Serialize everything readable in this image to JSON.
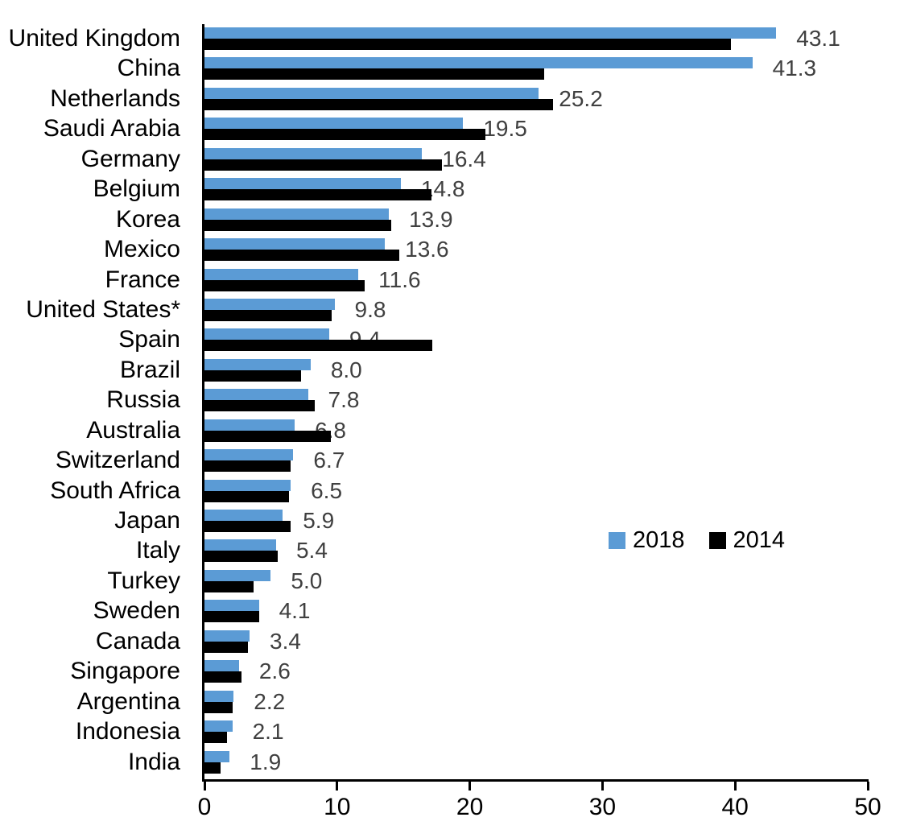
{
  "chart_data": {
    "type": "bar",
    "orientation": "horizontal",
    "title": "",
    "xlabel": "",
    "ylabel": "",
    "xlim": [
      0,
      50
    ],
    "x_ticks": [
      "0",
      "10",
      "20",
      "30",
      "40",
      "50"
    ],
    "grid": false,
    "legend_position": "middle-right",
    "categories": [
      "United Kingdom",
      "China",
      "Netherlands",
      "Saudi Arabia",
      "Germany",
      "Belgium",
      "Korea",
      "Mexico",
      "France",
      "United States*",
      "Spain",
      "Brazil",
      "Russia",
      "Australia",
      "Switzerland",
      "South Africa",
      "Japan",
      "Italy",
      "Turkey",
      "Sweden",
      "Canada",
      "Singapore",
      "Argentina",
      "Indonesia",
      "India"
    ],
    "series": [
      {
        "name": "2018",
        "color": "#5B9BD5",
        "values": [
          43.1,
          41.3,
          25.2,
          19.5,
          16.4,
          14.8,
          13.9,
          13.6,
          11.6,
          9.8,
          9.4,
          8.0,
          7.8,
          6.8,
          6.7,
          6.5,
          5.9,
          5.4,
          5.0,
          4.1,
          3.4,
          2.6,
          2.2,
          2.1,
          1.9
        ]
      },
      {
        "name": "2014",
        "color": "#000000",
        "values": [
          39.7,
          25.6,
          26.3,
          21.2,
          17.9,
          17.1,
          14.1,
          14.7,
          12.1,
          9.6,
          17.2,
          7.3,
          8.3,
          9.5,
          6.5,
          6.4,
          6.5,
          5.5,
          3.7,
          4.1,
          3.3,
          2.8,
          2.1,
          1.7,
          1.2
        ]
      }
    ],
    "data_labels": [
      "43.1",
      "41.3",
      "25.2",
      "19.5",
      "16.4",
      "14.8",
      "13.9",
      "13.6",
      "11.6",
      "9.8",
      "9.4",
      "8.0",
      "7.8",
      "6.8",
      "6.7",
      "6.5",
      "5.9",
      "5.4",
      "5.0",
      "4.1",
      "3.4",
      "2.6",
      "2.2",
      "2.1",
      "1.9"
    ],
    "data_label_color": "#404040",
    "axis_color": "#000000"
  },
  "legend": {
    "entries": [
      {
        "label": "2018",
        "color": "#5B9BD5"
      },
      {
        "label": "2014",
        "color": "#000000"
      }
    ]
  }
}
